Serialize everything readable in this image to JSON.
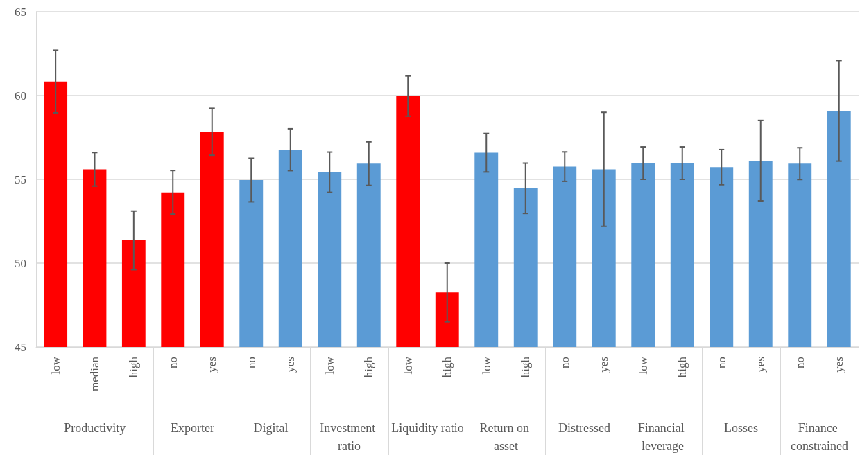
{
  "chart_data": [
    {
      "type": "bar",
      "xlabel": "Productivity",
      "categories": [
        "low",
        "median",
        "high"
      ],
      "values": [
        60.84,
        55.6,
        51.36
      ],
      "errors": [
        1.87,
        1.0,
        1.75
      ],
      "color": "#ff0000",
      "ylim": [
        45,
        65
      ],
      "yticks": [
        45,
        50,
        55,
        60,
        65
      ],
      "grid": "y"
    },
    {
      "type": "bar",
      "xlabel": "Exporter",
      "categories": [
        "no",
        "yes"
      ],
      "values": [
        54.23,
        57.84
      ],
      "errors": [
        1.3,
        1.4
      ],
      "color": "#ff0000",
      "ylim": [
        45,
        65
      ],
      "yticks": [
        45,
        50,
        55,
        60,
        65
      ],
      "grid": "y",
      "tick_labels": "x"
    },
    {
      "type": "bar",
      "xlabel": "Digital",
      "categories": [
        "no",
        "yes"
      ],
      "values": [
        54.96,
        56.77
      ],
      "errors": [
        1.3,
        1.25
      ],
      "color": "#5b9bd5",
      "ylim": [
        45,
        65
      ],
      "yticks": [
        45,
        50,
        55,
        60,
        65
      ],
      "grid": "y",
      "tick_labels": "x"
    },
    {
      "type": "bar",
      "xlabel": "Investment ratio",
      "categories": [
        "low",
        "high"
      ],
      "values": [
        55.43,
        55.94
      ],
      "errors": [
        1.2,
        1.3
      ],
      "color": "#5b9bd5",
      "ylim": [
        45,
        65
      ],
      "yticks": [
        45,
        50,
        55,
        60,
        65
      ],
      "grid": "y",
      "tick_labels": "x"
    },
    {
      "type": "bar",
      "xlabel": "Liquidity ratio",
      "categories": [
        "low",
        "high"
      ],
      "values": [
        59.97,
        48.25
      ],
      "errors": [
        1.2,
        1.75
      ],
      "color": "#ff0000",
      "ylim": [
        45,
        65
      ],
      "yticks": [
        45,
        50,
        55,
        60,
        65
      ],
      "grid": "y",
      "tick_labels": "x"
    },
    {
      "type": "bar",
      "xlabel": "Return on asset",
      "categories": [
        "low",
        "high"
      ],
      "values": [
        56.59,
        54.47
      ],
      "errors": [
        1.15,
        1.5
      ],
      "color": "#5b9bd5",
      "ylim": [
        45,
        65
      ],
      "yticks": [
        45,
        50,
        55,
        60,
        65
      ],
      "grid": "y",
      "tick_labels": "x"
    },
    {
      "type": "bar",
      "xlabel": "Distressed",
      "categories": [
        "no",
        "yes"
      ],
      "values": [
        55.76,
        55.6
      ],
      "errors": [
        0.88,
        3.4
      ],
      "color": "#5b9bd5",
      "ylim": [
        45,
        65
      ],
      "yticks": [
        45,
        50,
        55,
        60,
        65
      ],
      "grid": "y",
      "tick_labels": "x"
    },
    {
      "type": "bar",
      "xlabel": "Financial leverage",
      "categories": [
        "low",
        "high"
      ],
      "values": [
        55.97,
        55.97
      ],
      "errors": [
        0.97,
        0.97
      ],
      "color": "#5b9bd5",
      "ylim": [
        45,
        65
      ],
      "yticks": [
        45,
        50,
        55,
        60,
        65
      ],
      "grid": "y",
      "tick_labels": "x"
    },
    {
      "type": "bar",
      "xlabel": "Losses",
      "categories": [
        "no",
        "yes"
      ],
      "values": [
        55.73,
        56.12
      ],
      "errors": [
        1.05,
        2.4
      ],
      "color": "#5b9bd5",
      "ylim": [
        45,
        65
      ],
      "yticks": [
        45,
        50,
        55,
        60,
        65
      ],
      "grid": "y",
      "tick_labels": "x"
    },
    {
      "type": "bar",
      "xlabel": "Finance constrained",
      "categories": [
        "no",
        "yes"
      ],
      "values": [
        55.94,
        59.09
      ],
      "errors": [
        0.95,
        3.0
      ],
      "color": "#5b9bd5",
      "ylim": [
        45,
        65
      ],
      "yticks": [
        45,
        50,
        55,
        60,
        65
      ],
      "grid": "y",
      "tick_labels": "x"
    }
  ]
}
